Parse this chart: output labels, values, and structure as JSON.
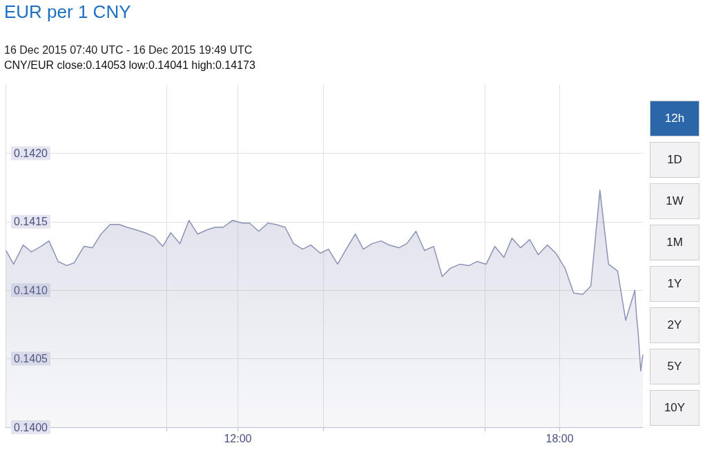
{
  "chart_data": {
    "type": "area",
    "title": "EUR per 1 CNY",
    "subtitle": "16 Dec 2015 07:40 UTC - 16 Dec 2015 19:49 UTC",
    "annotations": [
      "CNY/EUR close:0.14053 low:0.14041 high:0.14173",
      "12h",
      "1D",
      "1W",
      "1M",
      "1Y",
      "2Y",
      "5Y",
      "10Y"
    ],
    "x": [
      7.68,
      7.82,
      8.0,
      8.15,
      8.33,
      8.48,
      8.65,
      8.81,
      8.95,
      9.13,
      9.29,
      9.45,
      9.62,
      9.79,
      9.93,
      10.11,
      10.27,
      10.44,
      10.6,
      10.75,
      10.92,
      11.09,
      11.25,
      11.42,
      11.58,
      11.73,
      11.9,
      12.08,
      12.22,
      12.39,
      12.56,
      12.71,
      12.88,
      13.04,
      13.21,
      13.36,
      13.54,
      13.69,
      13.86,
      14.02,
      14.19,
      14.34,
      14.5,
      14.67,
      14.82,
      15.0,
      15.15,
      15.32,
      15.48,
      15.65,
      15.81,
      15.96,
      16.14,
      16.31,
      16.46,
      16.63,
      16.79,
      16.96,
      17.11,
      17.27,
      17.44,
      17.6,
      17.77,
      17.93,
      18.1,
      18.26,
      18.43,
      18.58,
      18.75,
      18.91,
      19.08,
      19.23,
      19.4,
      19.43,
      19.46,
      19.48,
      19.51,
      19.55
    ],
    "series": [
      {
        "color": "#8c92b5",
        "values": [
          0.14129,
          0.14119,
          0.14133,
          0.14128,
          0.14132,
          0.14136,
          0.14121,
          0.14118,
          0.1412,
          0.14132,
          0.14131,
          0.14141,
          0.14148,
          0.14148,
          0.14146,
          0.14144,
          0.14142,
          0.14139,
          0.14132,
          0.14142,
          0.14134,
          0.14151,
          0.14141,
          0.14144,
          0.14146,
          0.14146,
          0.14151,
          0.14149,
          0.14149,
          0.14143,
          0.14149,
          0.14148,
          0.14146,
          0.14134,
          0.1413,
          0.14133,
          0.14127,
          0.1413,
          0.14119,
          0.1413,
          0.14141,
          0.1413,
          0.14134,
          0.14136,
          0.14133,
          0.14131,
          0.14134,
          0.14143,
          0.14129,
          0.14132,
          0.1411,
          0.14116,
          0.14119,
          0.14118,
          0.14121,
          0.14119,
          0.14132,
          0.14124,
          0.14138,
          0.14131,
          0.14137,
          0.14126,
          0.14133,
          0.14127,
          0.14116,
          0.14098,
          0.14097,
          0.14103,
          0.14173,
          0.14119,
          0.14114,
          0.14078,
          0.141,
          0.14082,
          0.1407,
          0.14059,
          0.14041,
          0.14053
        ]
      }
    ],
    "xlim": [
      7.67,
      19.55
    ],
    "xticks": [
      {
        "value": 10.67,
        "label": null
      },
      {
        "value": 12,
        "label": "12:00"
      },
      {
        "value": 13.59,
        "label": null
      },
      {
        "value": 16.61,
        "label": null
      },
      {
        "value": 18,
        "label": "18:00"
      }
    ],
    "ylim": [
      0.14,
      0.1425
    ],
    "yticks": [
      {
        "value": 0.14,
        "label": "0.1400"
      },
      {
        "value": 0.1405,
        "label": "0.1405"
      },
      {
        "value": 0.141,
        "label": "0.1410"
      },
      {
        "value": 0.1415,
        "label": "0.1415"
      },
      {
        "value": 0.142,
        "label": "0.1420"
      }
    ],
    "grid": true,
    "marker": "none",
    "line_style": "solid"
  }
}
